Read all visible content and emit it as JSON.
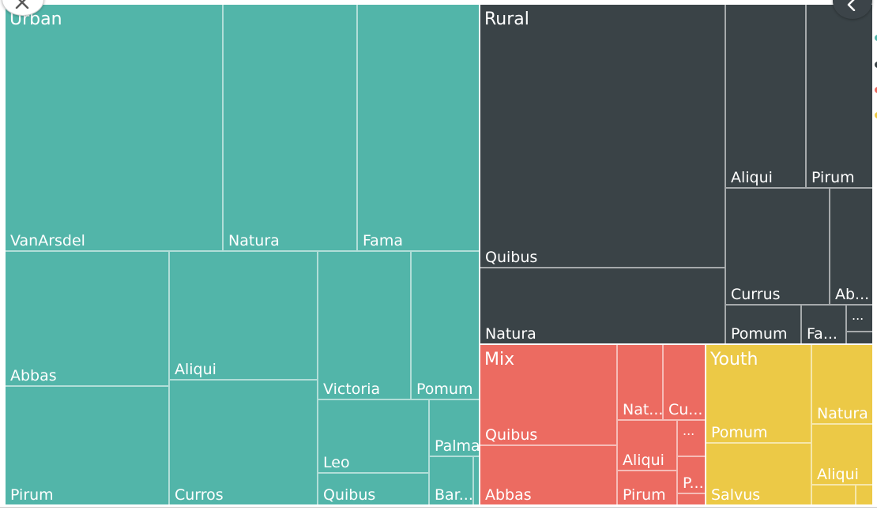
{
  "chart_data": {
    "type": "treemap",
    "groups": [
      {
        "name": "Urban",
        "color": "#52b5a9",
        "items": [
          {
            "label": "VanArsdel",
            "value": 8.7
          },
          {
            "label": "Natura",
            "value": 5.4
          },
          {
            "label": "Fama",
            "value": 4.9
          },
          {
            "label": "Abbas",
            "value": 3.6
          },
          {
            "label": "Pirum",
            "value": 3.2
          },
          {
            "label": "Aliqui",
            "value": 3.0
          },
          {
            "label": "Curros",
            "value": 3.3
          },
          {
            "label": "Victoria",
            "value": 2.2
          },
          {
            "label": "Pomum",
            "value": 2.2
          },
          {
            "label": "Leo",
            "value": 1.1
          },
          {
            "label": "Quibus",
            "value": 0.5
          },
          {
            "label": "Palma",
            "value": 0.7
          },
          {
            "label": "Bar...",
            "value": 0.6
          },
          {
            "label": "",
            "value": 0.05
          }
        ]
      },
      {
        "name": "Rural",
        "color": "#3a4347",
        "items": [
          {
            "label": "Quibus",
            "value": 8.2
          },
          {
            "label": "Natura",
            "value": 2.6
          },
          {
            "label": "Aliqui",
            "value": 2.0
          },
          {
            "label": "Pirum",
            "value": 1.6
          },
          {
            "label": "Currus",
            "value": 1.7
          },
          {
            "label": "Ab...",
            "value": 0.8
          },
          {
            "label": "Pomum",
            "value": 0.5
          },
          {
            "label": "Fa...",
            "value": 0.3
          },
          {
            "label": "...",
            "value": 0.2
          },
          {
            "label": "",
            "value": 0.1
          }
        ]
      },
      {
        "name": "Mix",
        "color": "#ec6b61",
        "items": [
          {
            "label": "Quibus",
            "value": 2.3
          },
          {
            "label": "Abbas",
            "value": 1.3
          },
          {
            "label": "Nat...",
            "value": 0.8
          },
          {
            "label": "Cu...",
            "value": 0.8
          },
          {
            "label": "Aliqui",
            "value": 0.6
          },
          {
            "label": "Pirum",
            "value": 0.5
          },
          {
            "label": "...",
            "value": 0.3
          },
          {
            "label": "P...",
            "value": 0.2
          },
          {
            "label": "",
            "value": 0.1
          }
        ]
      },
      {
        "name": "Youth",
        "color": "#ecc946",
        "items": [
          {
            "label": "Pomum",
            "value": 1.8
          },
          {
            "label": "Salvus",
            "value": 1.1
          },
          {
            "label": "Natura",
            "value": 0.9
          },
          {
            "label": "Aliqui",
            "value": 1.0
          },
          {
            "label": "",
            "value": 0.15
          },
          {
            "label": "",
            "value": 0.1
          }
        ]
      }
    ]
  },
  "controls": {
    "close_icon": "close-icon",
    "back_icon": "chevron-left-icon"
  },
  "legend_dots": [
    "#52b5a9",
    "#3a4347",
    "#ec6b61",
    "#ecc946"
  ]
}
